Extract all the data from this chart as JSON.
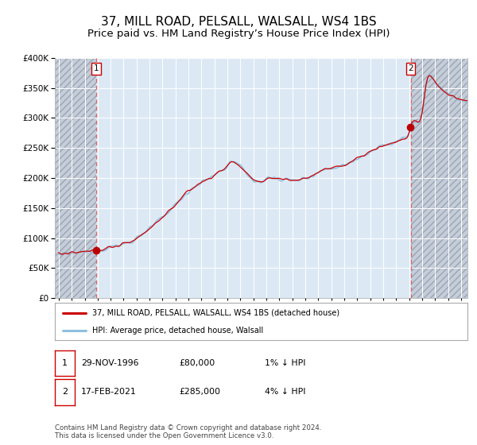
{
  "title": "37, MILL ROAD, PELSALL, WALSALL, WS4 1BS",
  "subtitle": "Price paid vs. HM Land Registry’s House Price Index (HPI)",
  "title_fontsize": 11,
  "subtitle_fontsize": 9.5,
  "background_color": "#ffffff",
  "plot_bg_color": "#dce9f5",
  "hatch_color": "#c5cdd8",
  "grid_color": "#ffffff",
  "red_line_color": "#cc0000",
  "blue_line_color": "#90bfdf",
  "dashed_line_color": "#dd6666",
  "marker_color": "#bb0000",
  "ylim": [
    0,
    400000
  ],
  "ytick_step": 50000,
  "xstart": 1994.0,
  "xend": 2025.5,
  "purchase1_date": 1996.91,
  "purchase1_price": 80000,
  "purchase2_date": 2021.12,
  "purchase2_price": 285000,
  "legend_entry1": "37, MILL ROAD, PELSALL, WALSALL, WS4 1BS (detached house)",
  "legend_entry2": "HPI: Average price, detached house, Walsall",
  "note1_num": "1",
  "note1_date": "29-NOV-1996",
  "note1_price": "£80,000",
  "note1_hpi": "1% ↓ HPI",
  "note2_num": "2",
  "note2_date": "17-FEB-2021",
  "note2_price": "£285,000",
  "note2_hpi": "4% ↓ HPI",
  "footer": "Contains HM Land Registry data © Crown copyright and database right 2024.\nThis data is licensed under the Open Government Licence v3.0.",
  "hpi_anchors_t": [
    1994.0,
    1994.5,
    1995.0,
    1995.5,
    1996.0,
    1996.5,
    1996.91,
    1997.5,
    1998.0,
    1998.5,
    1999.0,
    1999.5,
    2000.0,
    2000.5,
    2001.0,
    2001.5,
    2002.0,
    2002.5,
    2003.0,
    2003.5,
    2004.0,
    2004.5,
    2005.0,
    2005.5,
    2006.0,
    2006.5,
    2007.0,
    2007.3,
    2007.7,
    2008.0,
    2008.5,
    2009.0,
    2009.3,
    2009.5,
    2009.8,
    2010.0,
    2010.5,
    2011.0,
    2011.5,
    2012.0,
    2012.5,
    2013.0,
    2013.5,
    2014.0,
    2014.5,
    2015.0,
    2015.5,
    2016.0,
    2016.5,
    2017.0,
    2017.5,
    2018.0,
    2018.5,
    2019.0,
    2019.5,
    2020.0,
    2020.5,
    2021.0,
    2021.12,
    2021.5,
    2022.0,
    2022.3,
    2022.6,
    2023.0,
    2023.5,
    2024.0,
    2024.5,
    2025.0,
    2025.5
  ],
  "hpi_anchors_v": [
    73000,
    73500,
    74500,
    75500,
    76500,
    78000,
    80000,
    82000,
    85000,
    87000,
    90000,
    94000,
    100000,
    108000,
    116000,
    125000,
    135000,
    145000,
    156000,
    167000,
    178000,
    186000,
    193000,
    198000,
    205000,
    212000,
    220000,
    228000,
    224000,
    218000,
    208000,
    196000,
    192000,
    193000,
    196000,
    199000,
    200000,
    199000,
    198000,
    196000,
    197000,
    200000,
    204000,
    210000,
    214000,
    216000,
    219000,
    222000,
    227000,
    233000,
    238000,
    244000,
    249000,
    254000,
    257000,
    260000,
    265000,
    275000,
    285000,
    295000,
    308000,
    355000,
    370000,
    360000,
    348000,
    340000,
    335000,
    330000,
    328000
  ]
}
